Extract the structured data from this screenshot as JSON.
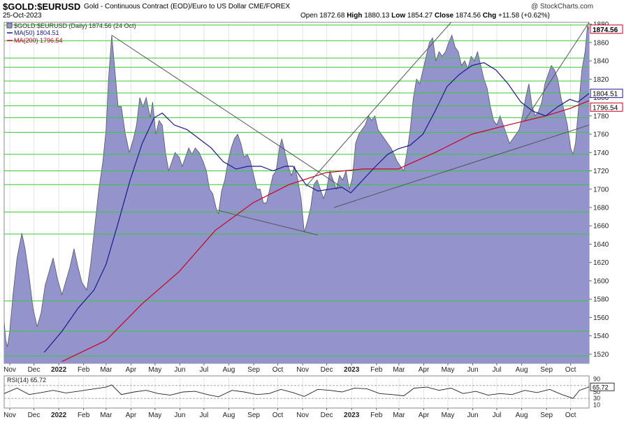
{
  "header": {
    "symbol": "$GOLD:$EURUSD",
    "description": "Gold - Continuous Contract (EOD)/Euro to US Dollar  CME/FOREX",
    "date": "25-Oct-2023",
    "open_label": "Open",
    "open": "1872.68",
    "high_label": "High",
    "high": "1880.13",
    "low_label": "Low",
    "low": "1854.27",
    "close_label": "Close",
    "close": "1874.56",
    "chg_label": "Chg",
    "chg": "+11.58 (+0.62%)",
    "brand": "@ StockCharts.com"
  },
  "legend": {
    "price": "$GOLD:$EURUSD (Daily) 1874.56 (24 Oct)",
    "ma50": "MA(50) 1804.51",
    "ma200": "MA(200) 1796.54"
  },
  "rsi": {
    "label": "RSI(14) 65.72",
    "value_tag": "65.72",
    "ticks": [
      "90",
      "70",
      "50",
      "30",
      "10"
    ]
  },
  "colors": {
    "area_fill": "#9494cc",
    "area_line": "#555566",
    "ma50": "#1a1a8c",
    "ma200": "#cc0022",
    "hlines": "#33cc33",
    "trendline": "#555555",
    "current_tag_border": "#cc0022"
  },
  "chart_data": {
    "type": "area",
    "title": "$GOLD:$EURUSD",
    "ylim": [
      1510,
      1882
    ],
    "y_ticks": [
      1520,
      1540,
      1560,
      1580,
      1600,
      1620,
      1640,
      1660,
      1680,
      1700,
      1720,
      1740,
      1760,
      1780,
      1800,
      1820,
      1840,
      1860,
      1880
    ],
    "x_ticks": [
      "Nov",
      "Dec",
      "2022",
      "Feb",
      "Mar",
      "Apr",
      "May",
      "Jun",
      "Jul",
      "Aug",
      "Sep",
      "Oct",
      "Nov",
      "Dec",
      "2023",
      "Feb",
      "Mar",
      "Apr",
      "May",
      "Jun",
      "Jul",
      "Aug",
      "Sep",
      "Oct"
    ],
    "x_start": "2021-10-25",
    "x_end": "2023-10-24",
    "price": [
      [
        "2021-10-25",
        1555
      ],
      [
        "2021-10-27",
        1535
      ],
      [
        "2021-10-29",
        1528
      ],
      [
        "2021-11-01",
        1545
      ],
      [
        "2021-11-05",
        1585
      ],
      [
        "2021-11-10",
        1625
      ],
      [
        "2021-11-16",
        1652
      ],
      [
        "2021-11-20",
        1635
      ],
      [
        "2021-11-25",
        1605
      ],
      [
        "2021-11-30",
        1570
      ],
      [
        "2021-12-05",
        1550
      ],
      [
        "2021-12-10",
        1565
      ],
      [
        "2021-12-15",
        1595
      ],
      [
        "2021-12-20",
        1610
      ],
      [
        "2021-12-25",
        1625
      ],
      [
        "2021-12-31",
        1600
      ],
      [
        "2022-01-05",
        1585
      ],
      [
        "2022-01-10",
        1600
      ],
      [
        "2022-01-15",
        1615
      ],
      [
        "2022-01-20",
        1635
      ],
      [
        "2022-01-25",
        1615
      ],
      [
        "2022-01-30",
        1598
      ],
      [
        "2022-02-05",
        1590
      ],
      [
        "2022-02-10",
        1620
      ],
      [
        "2022-02-15",
        1660
      ],
      [
        "2022-02-20",
        1700
      ],
      [
        "2022-02-25",
        1730
      ],
      [
        "2022-03-01",
        1765
      ],
      [
        "2022-03-04",
        1820
      ],
      [
        "2022-03-08",
        1868
      ],
      [
        "2022-03-12",
        1830
      ],
      [
        "2022-03-16",
        1790
      ],
      [
        "2022-03-20",
        1790
      ],
      [
        "2022-03-25",
        1760
      ],
      [
        "2022-03-30",
        1740
      ],
      [
        "2022-04-04",
        1755
      ],
      [
        "2022-04-08",
        1770
      ],
      [
        "2022-04-12",
        1800
      ],
      [
        "2022-04-16",
        1790
      ],
      [
        "2022-04-20",
        1800
      ],
      [
        "2022-04-25",
        1778
      ],
      [
        "2022-04-28",
        1795
      ],
      [
        "2022-05-02",
        1760
      ],
      [
        "2022-05-06",
        1775
      ],
      [
        "2022-05-10",
        1770
      ],
      [
        "2022-05-14",
        1740
      ],
      [
        "2022-05-18",
        1720
      ],
      [
        "2022-05-22",
        1730
      ],
      [
        "2022-05-26",
        1740
      ],
      [
        "2022-05-31",
        1735
      ],
      [
        "2022-06-04",
        1725
      ],
      [
        "2022-06-08",
        1735
      ],
      [
        "2022-06-12",
        1745
      ],
      [
        "2022-06-16",
        1738
      ],
      [
        "2022-06-20",
        1745
      ],
      [
        "2022-06-25",
        1740
      ],
      [
        "2022-06-30",
        1730
      ],
      [
        "2022-07-04",
        1720
      ],
      [
        "2022-07-08",
        1700
      ],
      [
        "2022-07-12",
        1695
      ],
      [
        "2022-07-16",
        1680
      ],
      [
        "2022-07-19",
        1673
      ],
      [
        "2022-07-23",
        1698
      ],
      [
        "2022-07-27",
        1710
      ],
      [
        "2022-07-31",
        1730
      ],
      [
        "2022-08-04",
        1745
      ],
      [
        "2022-08-08",
        1755
      ],
      [
        "2022-08-12",
        1760
      ],
      [
        "2022-08-16",
        1750
      ],
      [
        "2022-08-20",
        1735
      ],
      [
        "2022-08-24",
        1738
      ],
      [
        "2022-08-28",
        1730
      ],
      [
        "2022-09-01",
        1715
      ],
      [
        "2022-09-05",
        1700
      ],
      [
        "2022-09-09",
        1700
      ],
      [
        "2022-09-13",
        1685
      ],
      [
        "2022-09-17",
        1685
      ],
      [
        "2022-09-21",
        1700
      ],
      [
        "2022-09-25",
        1715
      ],
      [
        "2022-09-29",
        1720
      ],
      [
        "2022-10-03",
        1745
      ],
      [
        "2022-10-06",
        1755
      ],
      [
        "2022-10-10",
        1740
      ],
      [
        "2022-10-14",
        1725
      ],
      [
        "2022-10-18",
        1715
      ],
      [
        "2022-10-22",
        1725
      ],
      [
        "2022-10-26",
        1710
      ],
      [
        "2022-10-30",
        1690
      ],
      [
        "2022-11-03",
        1653
      ],
      [
        "2022-11-07",
        1665
      ],
      [
        "2022-11-11",
        1680
      ],
      [
        "2022-11-15",
        1705
      ],
      [
        "2022-11-19",
        1710
      ],
      [
        "2022-11-23",
        1700
      ],
      [
        "2022-11-27",
        1690
      ],
      [
        "2022-12-01",
        1700
      ],
      [
        "2022-12-05",
        1720
      ],
      [
        "2022-12-09",
        1710
      ],
      [
        "2022-12-13",
        1700
      ],
      [
        "2022-12-17",
        1715
      ],
      [
        "2022-12-21",
        1710
      ],
      [
        "2022-12-25",
        1720
      ],
      [
        "2022-12-29",
        1700
      ],
      [
        "2023-01-02",
        1712
      ],
      [
        "2023-01-06",
        1750
      ],
      [
        "2023-01-10",
        1760
      ],
      [
        "2023-01-14",
        1765
      ],
      [
        "2023-01-18",
        1770
      ],
      [
        "2023-01-22",
        1780
      ],
      [
        "2023-01-26",
        1775
      ],
      [
        "2023-01-30",
        1780
      ],
      [
        "2023-02-03",
        1765
      ],
      [
        "2023-02-07",
        1760
      ],
      [
        "2023-02-11",
        1755
      ],
      [
        "2023-02-15",
        1750
      ],
      [
        "2023-02-19",
        1745
      ],
      [
        "2023-02-23",
        1738
      ],
      [
        "2023-02-27",
        1730
      ],
      [
        "2023-03-03",
        1725
      ],
      [
        "2023-03-07",
        1720
      ],
      [
        "2023-03-11",
        1740
      ],
      [
        "2023-03-15",
        1765
      ],
      [
        "2023-03-19",
        1800
      ],
      [
        "2023-03-23",
        1820
      ],
      [
        "2023-03-27",
        1815
      ],
      [
        "2023-03-31",
        1830
      ],
      [
        "2023-04-04",
        1845
      ],
      [
        "2023-04-08",
        1860
      ],
      [
        "2023-04-12",
        1865
      ],
      [
        "2023-04-16",
        1840
      ],
      [
        "2023-04-20",
        1850
      ],
      [
        "2023-04-24",
        1845
      ],
      [
        "2023-04-28",
        1850
      ],
      [
        "2023-05-02",
        1860
      ],
      [
        "2023-05-06",
        1868
      ],
      [
        "2023-05-10",
        1855
      ],
      [
        "2023-05-14",
        1850
      ],
      [
        "2023-05-18",
        1835
      ],
      [
        "2023-05-22",
        1840
      ],
      [
        "2023-05-26",
        1832
      ],
      [
        "2023-05-30",
        1845
      ],
      [
        "2023-06-03",
        1840
      ],
      [
        "2023-06-07",
        1850
      ],
      [
        "2023-06-11",
        1835
      ],
      [
        "2023-06-15",
        1820
      ],
      [
        "2023-06-19",
        1810
      ],
      [
        "2023-06-23",
        1790
      ],
      [
        "2023-06-27",
        1775
      ],
      [
        "2023-07-01",
        1770
      ],
      [
        "2023-07-05",
        1780
      ],
      [
        "2023-07-09",
        1770
      ],
      [
        "2023-07-13",
        1760
      ],
      [
        "2023-07-17",
        1750
      ],
      [
        "2023-07-21",
        1755
      ],
      [
        "2023-07-25",
        1760
      ],
      [
        "2023-07-29",
        1765
      ],
      [
        "2023-08-02",
        1780
      ],
      [
        "2023-08-06",
        1800
      ],
      [
        "2023-08-10",
        1815
      ],
      [
        "2023-08-14",
        1790
      ],
      [
        "2023-08-18",
        1780
      ],
      [
        "2023-08-22",
        1785
      ],
      [
        "2023-08-26",
        1795
      ],
      [
        "2023-08-30",
        1815
      ],
      [
        "2023-09-03",
        1825
      ],
      [
        "2023-09-07",
        1835
      ],
      [
        "2023-09-11",
        1830
      ],
      [
        "2023-09-15",
        1820
      ],
      [
        "2023-09-19",
        1800
      ],
      [
        "2023-09-23",
        1785
      ],
      [
        "2023-09-27",
        1770
      ],
      [
        "2023-10-01",
        1745
      ],
      [
        "2023-10-04",
        1738
      ],
      [
        "2023-10-07",
        1750
      ],
      [
        "2023-10-11",
        1790
      ],
      [
        "2023-10-15",
        1830
      ],
      [
        "2023-10-19",
        1850
      ],
      [
        "2023-10-22",
        1878
      ],
      [
        "2023-10-24",
        1874.56
      ]
    ],
    "ma50": [
      [
        "2021-12-14",
        1522
      ],
      [
        "2022-01-05",
        1545
      ],
      [
        "2022-01-25",
        1570
      ],
      [
        "2022-02-14",
        1590
      ],
      [
        "2022-03-01",
        1618
      ],
      [
        "2022-03-15",
        1660
      ],
      [
        "2022-03-31",
        1710
      ],
      [
        "2022-04-15",
        1750
      ],
      [
        "2022-04-30",
        1778
      ],
      [
        "2022-05-10",
        1783
      ],
      [
        "2022-05-25",
        1770
      ],
      [
        "2022-06-10",
        1765
      ],
      [
        "2022-06-25",
        1755
      ],
      [
        "2022-07-10",
        1745
      ],
      [
        "2022-07-25",
        1730
      ],
      [
        "2022-08-10",
        1722
      ],
      [
        "2022-08-25",
        1725
      ],
      [
        "2022-09-10",
        1725
      ],
      [
        "2022-09-25",
        1720
      ],
      [
        "2022-10-10",
        1725
      ],
      [
        "2022-10-20",
        1725
      ],
      [
        "2022-11-05",
        1705
      ],
      [
        "2022-11-20",
        1698
      ],
      [
        "2022-12-05",
        1700
      ],
      [
        "2022-12-20",
        1702
      ],
      [
        "2022-12-31",
        1696
      ],
      [
        "2023-01-15",
        1710
      ],
      [
        "2023-01-31",
        1725
      ],
      [
        "2023-02-15",
        1738
      ],
      [
        "2023-02-28",
        1744
      ],
      [
        "2023-03-15",
        1748
      ],
      [
        "2023-03-31",
        1760
      ],
      [
        "2023-04-15",
        1785
      ],
      [
        "2023-04-30",
        1812
      ],
      [
        "2023-05-15",
        1825
      ],
      [
        "2023-05-31",
        1835
      ],
      [
        "2023-06-15",
        1838
      ],
      [
        "2023-06-30",
        1830
      ],
      [
        "2023-07-15",
        1815
      ],
      [
        "2023-07-31",
        1795
      ],
      [
        "2023-08-15",
        1785
      ],
      [
        "2023-08-31",
        1780
      ],
      [
        "2023-09-15",
        1790
      ],
      [
        "2023-09-30",
        1798
      ],
      [
        "2023-10-10",
        1795
      ],
      [
        "2023-10-24",
        1804.51
      ]
    ],
    "ma200": [
      [
        "2022-01-05",
        1512
      ],
      [
        "2022-03-01",
        1535
      ],
      [
        "2022-04-15",
        1575
      ],
      [
        "2022-05-31",
        1610
      ],
      [
        "2022-07-15",
        1655
      ],
      [
        "2022-08-31",
        1685
      ],
      [
        "2022-10-15",
        1705
      ],
      [
        "2022-11-30",
        1718
      ],
      [
        "2023-01-15",
        1722
      ],
      [
        "2023-02-28",
        1722
      ],
      [
        "2023-04-15",
        1740
      ],
      [
        "2023-05-31",
        1760
      ],
      [
        "2023-07-15",
        1770
      ],
      [
        "2023-08-31",
        1780
      ],
      [
        "2023-09-30",
        1788
      ],
      [
        "2023-10-24",
        1796.54
      ]
    ],
    "horizontal_levels": [
      1518,
      1545,
      1578,
      1651,
      1675,
      1705,
      1720,
      1738,
      1762,
      1778,
      1791,
      1805,
      1818,
      1833,
      1843,
      1862,
      1879
    ],
    "trendlines": [
      [
        [
          "2022-03-08",
          1868
        ],
        [
          "2022-12-20",
          1702
        ]
      ],
      [
        [
          "2022-07-18",
          1677
        ],
        [
          "2022-11-20",
          1650
        ]
      ],
      [
        [
          "2022-11-05",
          1703
        ],
        [
          "2023-05-05",
          1882
        ]
      ],
      [
        [
          "2022-12-10",
          1680
        ],
        [
          "2023-10-24",
          1770
        ]
      ],
      [
        [
          "2023-08-05",
          1775
        ],
        [
          "2023-10-24",
          1882
        ]
      ]
    ],
    "rsi_ylim": [
      0,
      100
    ],
    "rsi_ticks": [
      90,
      70,
      50,
      30,
      10
    ],
    "rsi": [
      [
        "2021-10-25",
        45
      ],
      [
        "2021-11-10",
        62
      ],
      [
        "2021-11-25",
        42
      ],
      [
        "2021-12-10",
        48
      ],
      [
        "2021-12-25",
        55
      ],
      [
        "2022-01-10",
        47
      ],
      [
        "2022-01-25",
        52
      ],
      [
        "2022-02-10",
        58
      ],
      [
        "2022-03-01",
        65
      ],
      [
        "2022-03-08",
        72
      ],
      [
        "2022-03-20",
        42
      ],
      [
        "2022-04-05",
        50
      ],
      [
        "2022-04-20",
        55
      ],
      [
        "2022-05-05",
        45
      ],
      [
        "2022-05-20",
        40
      ],
      [
        "2022-06-05",
        50
      ],
      [
        "2022-06-20",
        52
      ],
      [
        "2022-07-05",
        42
      ],
      [
        "2022-07-19",
        35
      ],
      [
        "2022-08-05",
        55
      ],
      [
        "2022-08-20",
        50
      ],
      [
        "2022-09-05",
        42
      ],
      [
        "2022-09-20",
        45
      ],
      [
        "2022-10-05",
        58
      ],
      [
        "2022-10-20",
        48
      ],
      [
        "2022-11-03",
        36
      ],
      [
        "2022-11-20",
        58
      ],
      [
        "2022-12-05",
        55
      ],
      [
        "2022-12-20",
        50
      ],
      [
        "2023-01-05",
        62
      ],
      [
        "2023-01-20",
        60
      ],
      [
        "2023-02-05",
        45
      ],
      [
        "2023-02-20",
        42
      ],
      [
        "2023-03-07",
        38
      ],
      [
        "2023-03-20",
        62
      ],
      [
        "2023-04-05",
        65
      ],
      [
        "2023-04-20",
        55
      ],
      [
        "2023-05-05",
        62
      ],
      [
        "2023-05-20",
        45
      ],
      [
        "2023-06-05",
        52
      ],
      [
        "2023-06-20",
        40
      ],
      [
        "2023-07-05",
        45
      ],
      [
        "2023-07-20",
        42
      ],
      [
        "2023-08-05",
        55
      ],
      [
        "2023-08-20",
        48
      ],
      [
        "2023-09-05",
        58
      ],
      [
        "2023-09-20",
        42
      ],
      [
        "2023-10-04",
        30
      ],
      [
        "2023-10-12",
        55
      ],
      [
        "2023-10-24",
        65.72
      ]
    ]
  }
}
